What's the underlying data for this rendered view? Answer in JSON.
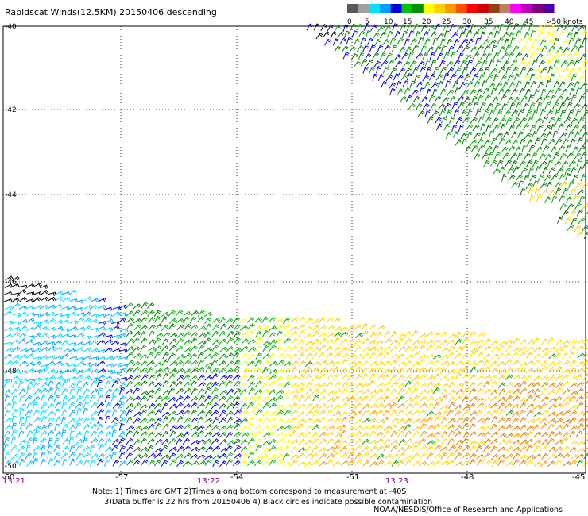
{
  "title": "Rapidscat Winds(12.5KM) 20150406 descending",
  "speed_scale": {
    "labels": [
      "0",
      "5",
      "10",
      "15",
      "20",
      "25",
      "30",
      "35",
      "40",
      "45",
      ">50 knots"
    ],
    "colors": [
      "#5a5a5a",
      "#a0a0a0",
      "#00e0ff",
      "#00a0ff",
      "#0000e0",
      "#00c000",
      "#009000",
      "#ffff00",
      "#ffd000",
      "#ff9900",
      "#ff5000",
      "#ff0000",
      "#d00000",
      "#8b4513",
      "#c08060",
      "#ff00ff",
      "#c000c0",
      "#800080",
      "#5000a0"
    ]
  },
  "map": {
    "lon_ticks": [
      "-60",
      "-57",
      "-54",
      "-51",
      "-48",
      "-45"
    ],
    "lat_ticks": [
      "-40",
      "-42",
      "-44",
      "-46",
      "-48",
      "-50"
    ],
    "time_labels": [
      "13:21",
      "13:22",
      "13:23"
    ]
  },
  "notes": {
    "line1": "Note: 1) Times are GMT 2)Times along bottom correspond to measurement at -40S",
    "line2": "     3)Data buffer is 22 hrs from 20150406 4) Black circles indicate possible contamination",
    "credit": "NOAA/NESDIS/Office of Research and Applications"
  }
}
